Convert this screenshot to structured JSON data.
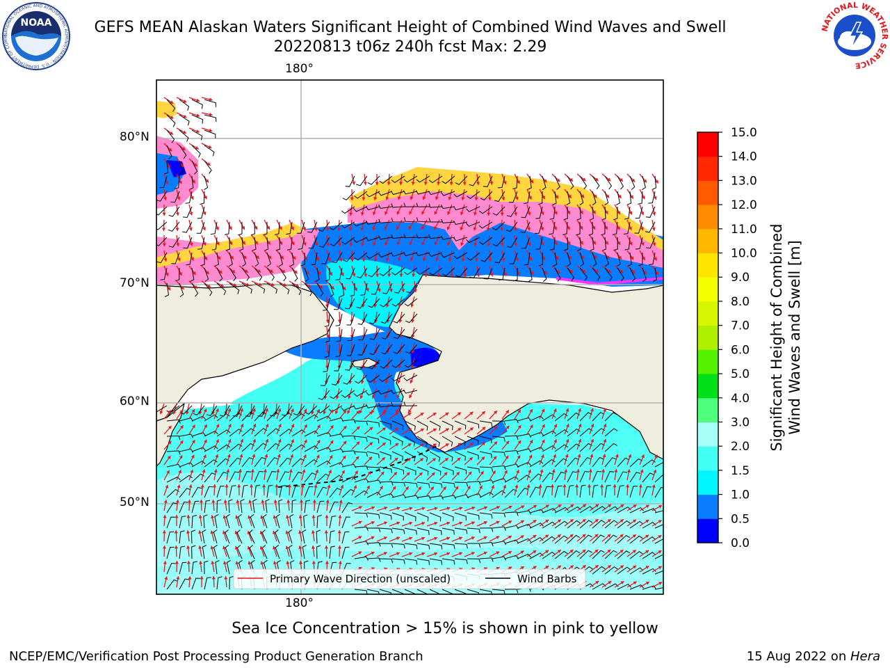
{
  "title": "GEFS MEAN Alaskan Waters Significant Height of Combined Wind Waves and Swell",
  "subtitle": "20220813 t06z 240h fcst   Max: 2.29",
  "map": {
    "lon_label_top": "180°",
    "lon_label_bottom": "180°",
    "lat_labels": [
      "80°N",
      "70°N",
      "60°N",
      "50°N"
    ]
  },
  "legend": {
    "wave_label": "Primary Wave Direction (unscaled)",
    "wave_color": "#e8141c",
    "barb_label": "Wind Barbs",
    "barb_color": "#000000"
  },
  "colorbar": {
    "title_line1": "Significant Height of Combined",
    "title_line2": "Wind Waves and Swell [m]",
    "ticks": [
      "0.0",
      "0.5",
      "1.0",
      "1.5",
      "2.0",
      "3.0",
      "4.0",
      "5.0",
      "6.0",
      "7.0",
      "8.0",
      "9.0",
      "10.0",
      "11.0",
      "12.0",
      "13.0",
      "14.0",
      "15.0"
    ],
    "colors": [
      "#0000ff",
      "#0a7cff",
      "#00f5ff",
      "#44fff4",
      "#a6fff6",
      "#4dff7a",
      "#00e01a",
      "#55f000",
      "#aef000",
      "#d5f500",
      "#f3ff00",
      "#ffe600",
      "#ffb800",
      "#ff8c00",
      "#ff5a00",
      "#ff2800",
      "#ff0000"
    ]
  },
  "colors": {
    "land": "#efedde",
    "ocean_low": "#33ffff",
    "ocean_high": "#aafcf8",
    "ice_pink": "#ff8ad0",
    "ice_yellow": "#ffd640",
    "ice_magenta": "#ff30ff"
  },
  "logos": {
    "left": "NOAA",
    "left_ring": "NATIONAL OCEANIC AND ATMOSPHERIC ADMINISTRATION · U.S. DEPARTMENT OF COMMERCE",
    "right_ring": "NATIONAL WEATHER SERVICE"
  },
  "footer": {
    "note": "Sea Ice Concentration > 15% is shown in pink to yellow",
    "left": "NCEP/EMC/Verification Post Processing Product Generation Branch",
    "date": "15 Aug 2022 on ",
    "host": "Hera"
  }
}
